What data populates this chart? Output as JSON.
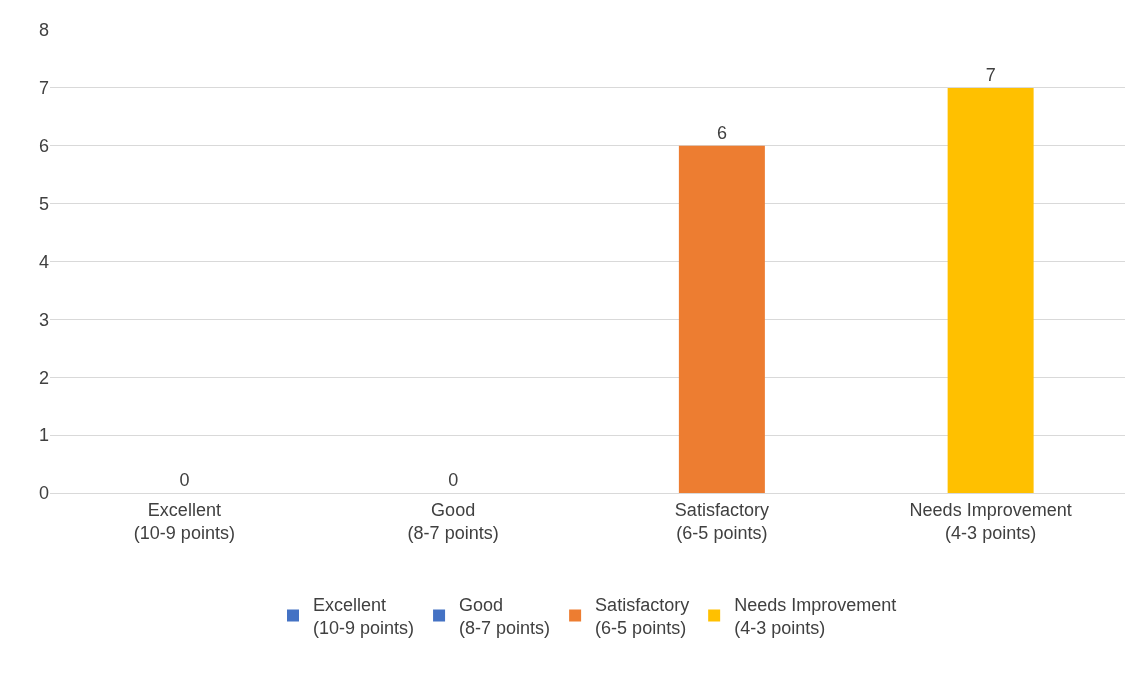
{
  "chart_data": {
    "type": "bar",
    "categories": [
      "Excellent\n(10-9 points)",
      "Good\n(8-7 points)",
      "Satisfactory\n(6-5 points)",
      "Needs Improvement\n(4-3 points)"
    ],
    "series": [
      {
        "name": "Excellent\n(10-9 points)",
        "color": "#4472c4",
        "values": [
          0,
          null,
          null,
          null
        ]
      },
      {
        "name": "Good\n(8-7 points)",
        "color": "#4472c4",
        "values": [
          null,
          0,
          null,
          null
        ]
      },
      {
        "name": "Satisfactory\n(6-5 points)",
        "color": "#ed7d31",
        "values": [
          null,
          null,
          6,
          null
        ]
      },
      {
        "name": "Needs Improvement\n(4-3 points)",
        "color": "#ffc000",
        "values": [
          null,
          null,
          null,
          7
        ]
      }
    ],
    "ylim": [
      0,
      8
    ],
    "yticks": [
      0,
      1,
      2,
      3,
      4,
      5,
      6,
      7,
      8
    ],
    "grid": "y",
    "legend": "bottom",
    "data_labels": true
  }
}
